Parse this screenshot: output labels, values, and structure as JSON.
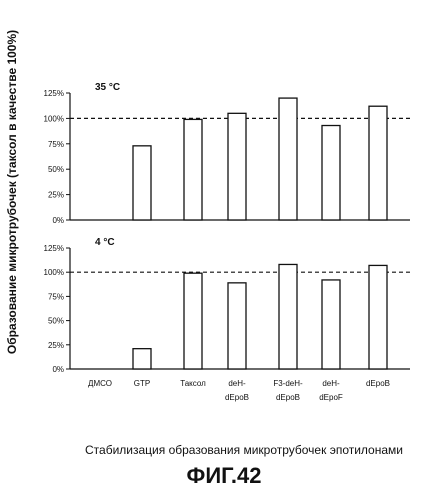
{
  "chart_data": {
    "type": "bar",
    "ylabel": "Образование микротрубочек (таксол в качестве 100%)",
    "ylim": [
      0,
      125
    ],
    "yticks": [
      "0%",
      "25%",
      "50%",
      "75%",
      "100%",
      "125%"
    ],
    "reference_line": 100,
    "categories": [
      [
        "ДМСО"
      ],
      [
        "GTP"
      ],
      [
        "Таксол"
      ],
      [
        "dеН-",
        "dЕроВ"
      ],
      [
        "F3-dеН-",
        "dЕроВ"
      ],
      [
        "dеН-",
        "dЕроF"
      ],
      [
        "dЕроВ"
      ]
    ],
    "panels": [
      {
        "label": "35 °C",
        "values": [
          0,
          73,
          99,
          105,
          120,
          93,
          112
        ]
      },
      {
        "label": "4 °C",
        "values": [
          0,
          21,
          99,
          89,
          108,
          92,
          107
        ]
      }
    ]
  },
  "caption": "Стабилизация образования микротрубочек эпотилонами",
  "figure_label": "ФИГ.42",
  "colors": {
    "ink": "#111111",
    "bar_fill": "#ffffff"
  }
}
